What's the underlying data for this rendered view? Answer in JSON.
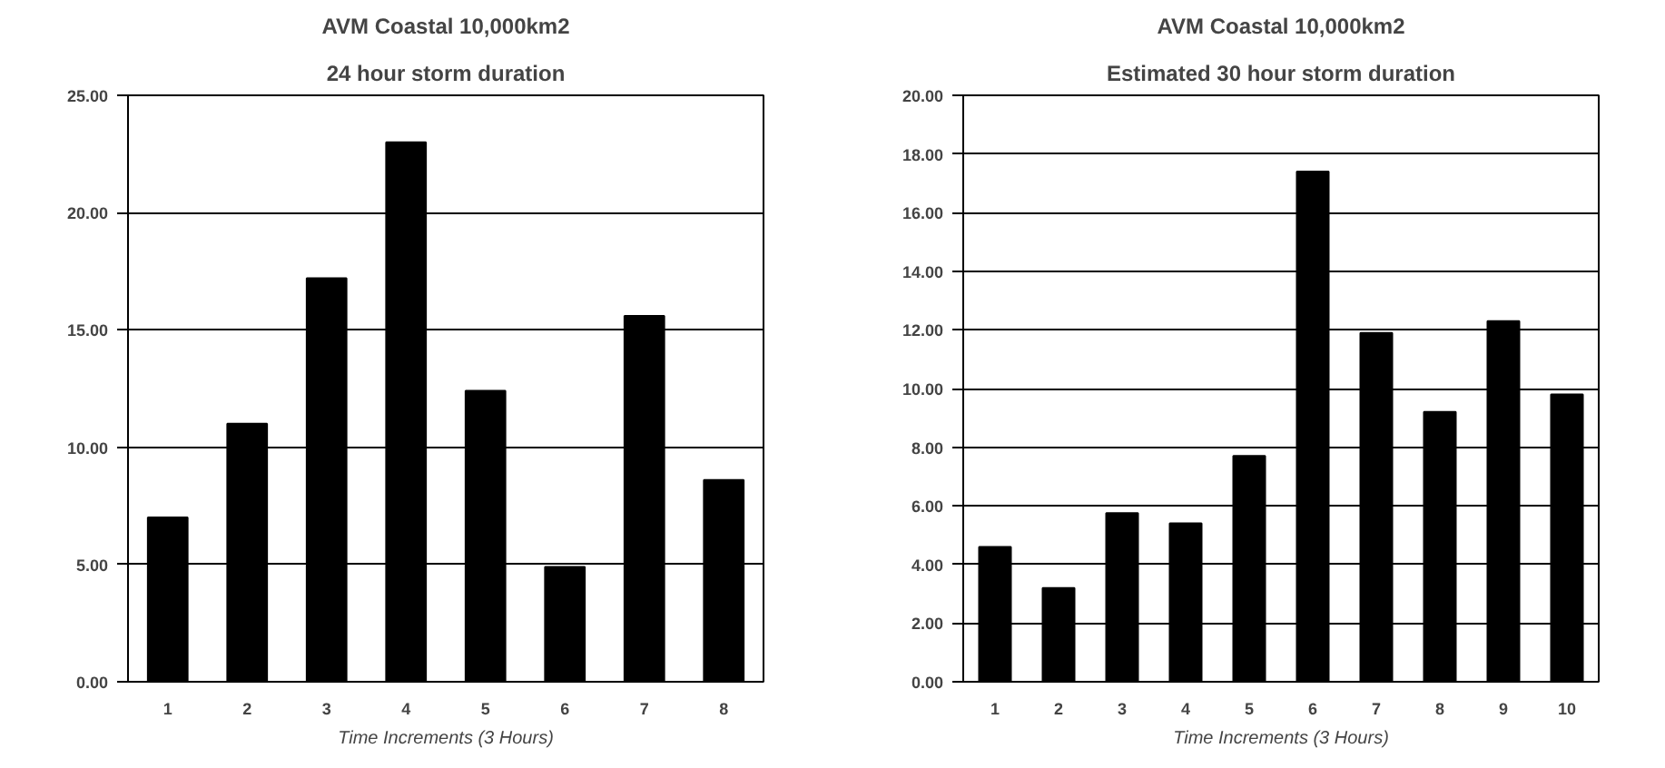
{
  "chart_data": [
    {
      "type": "bar",
      "title": "AVM Coastal 10,000km2",
      "subtitle": "24 hour storm duration",
      "xlabel": "Time Increments (3 Hours)",
      "categories": [
        "1",
        "2",
        "3",
        "4",
        "5",
        "6",
        "7",
        "8"
      ],
      "values": [
        7.0,
        11.0,
        17.2,
        23.0,
        12.4,
        4.9,
        15.6,
        8.6
      ],
      "color": "#000000",
      "ylim": [
        0,
        25
      ],
      "yticks": [
        {
          "value": 0,
          "label": "0.00"
        },
        {
          "value": 5,
          "label": "5.00"
        },
        {
          "value": 10,
          "label": "10.00"
        },
        {
          "value": 15,
          "label": "15.00"
        },
        {
          "value": 20,
          "label": "20.00"
        },
        {
          "value": 25,
          "label": "25.00"
        }
      ],
      "grid": "y",
      "legend": false
    },
    {
      "type": "bar",
      "title": "AVM Coastal 10,000km2",
      "subtitle": "Estimated 30 hour storm duration",
      "xlabel": "Time Increments (3 Hours)",
      "categories": [
        "1",
        "2",
        "3",
        "4",
        "5",
        "6",
        "7",
        "8",
        "9",
        "10"
      ],
      "values": [
        4.6,
        3.2,
        5.75,
        5.4,
        7.7,
        17.4,
        11.9,
        9.2,
        12.3,
        9.8
      ],
      "color": "#000000",
      "ylim": [
        0,
        20
      ],
      "yticks": [
        {
          "value": 0,
          "label": "0.00"
        },
        {
          "value": 2,
          "label": "2.00"
        },
        {
          "value": 4,
          "label": "4.00"
        },
        {
          "value": 6,
          "label": "6.00"
        },
        {
          "value": 8,
          "label": "8.00"
        },
        {
          "value": 10,
          "label": "10.00"
        },
        {
          "value": 12,
          "label": "12.00"
        },
        {
          "value": 14,
          "label": "14.00"
        },
        {
          "value": 16,
          "label": "16.00"
        },
        {
          "value": 18,
          "label": "18.00"
        },
        {
          "value": 20,
          "label": "20.00"
        }
      ],
      "grid": "y",
      "legend": false
    }
  ]
}
